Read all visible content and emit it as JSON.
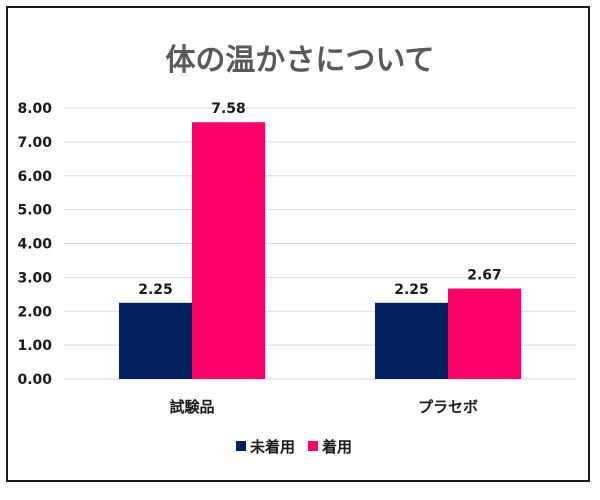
{
  "chart_data": {
    "type": "bar",
    "title": "体の温かさについて",
    "categories": [
      "試験品",
      "プラセボ"
    ],
    "series": [
      {
        "name": "未着用",
        "values": [
          2.25,
          2.25
        ],
        "color": "#002060"
      },
      {
        "name": "着用",
        "values": [
          7.58,
          2.67
        ],
        "color": "#ff0066"
      }
    ],
    "ylim": [
      0,
      8
    ],
    "yticks": [
      "0.00",
      "1.00",
      "2.00",
      "3.00",
      "4.00",
      "5.00",
      "6.00",
      "7.00",
      "8.00"
    ],
    "data_labels": [
      [
        "2.25",
        "2.25"
      ],
      [
        "7.58",
        "2.67"
      ]
    ],
    "grid": true,
    "legend_position": "bottom"
  }
}
